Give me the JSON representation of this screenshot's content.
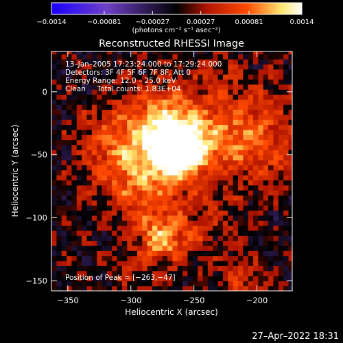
{
  "chart_data": {
    "type": "heatmap",
    "title": "Reconstructed RHESSI Image",
    "xlabel": "Heliocentric X (arcsec)",
    "ylabel": "Heliocentric Y (arcsec)",
    "xlim": [
      -363,
      -172
    ],
    "ylim": [
      -158,
      32
    ],
    "x_ticks": [
      -350,
      -300,
      -250,
      -200
    ],
    "x_tick_labels": [
      "−350",
      "−300",
      "−250",
      "−200"
    ],
    "y_ticks": [
      0,
      -50,
      -100,
      -150
    ],
    "y_tick_labels": [
      "0",
      "−50",
      "−100",
      "−150"
    ],
    "colorbar": {
      "range": [
        -0.0014,
        0.0014
      ],
      "ticks": [
        -0.0014,
        -0.00081,
        -0.00027,
        0.00027,
        0.00081,
        0.0014
      ],
      "tick_labels": [
        "−0.0014",
        "−0.00081",
        "−0.00027",
        "0.00027",
        "0.00081",
        "0.0014"
      ],
      "label": "(photons cm⁻² s⁻¹ asec⁻²)",
      "colors": [
        "#1a00ff",
        "#6e40c8",
        "#000000",
        "#b01400",
        "#ff4a00",
        "#ffe870",
        "#ffffff"
      ]
    },
    "peak": [
      -263,
      -47
    ],
    "annotations": [
      "13–Jan–2005 17:23:24.000 to 17:29:24.000",
      "Detectors: 3F 4F 5F 6F 7F 8F, Att 0",
      "Energy Range: 12.0 – 25.0 keV",
      "Clean     Total counts: 1.83E+04",
      "Position of Peak = [−263,−47]"
    ],
    "footer": "27–Apr–2022 18:31"
  }
}
